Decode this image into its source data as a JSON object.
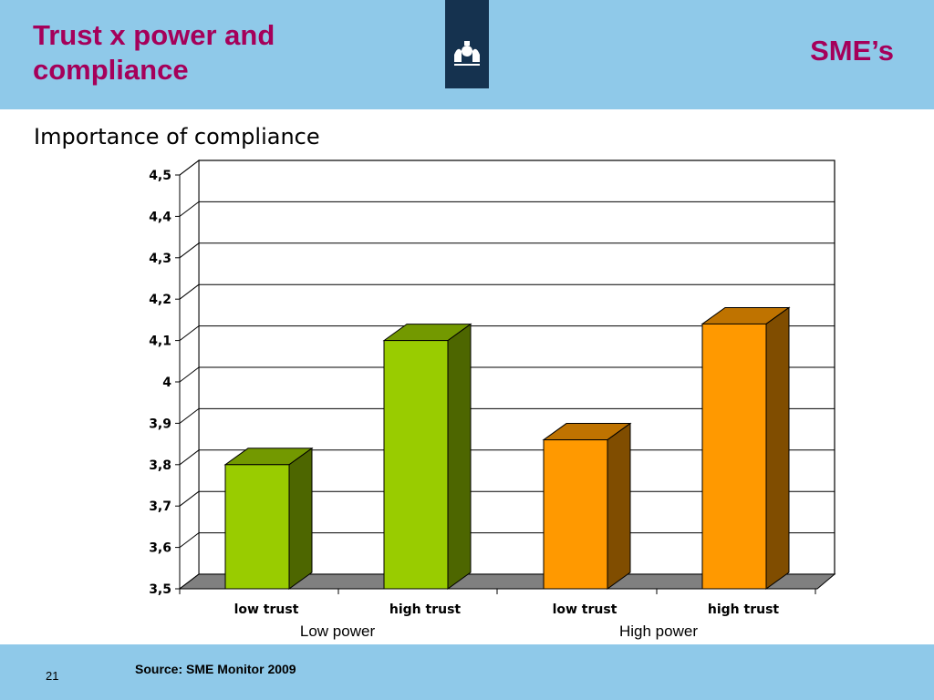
{
  "header": {
    "title": "Trust x power and compliance",
    "segment": "SME’s"
  },
  "footer": {
    "source": "Source: SME Monitor 2009",
    "page_number": "21"
  },
  "chart_data": {
    "type": "bar",
    "title": "Importance of compliance",
    "categories": [
      "low trust",
      "high trust",
      "low trust",
      "high trust"
    ],
    "groups": [
      "Low power",
      "High power"
    ],
    "values": [
      3.8,
      4.1,
      3.86,
      4.14
    ],
    "colors": [
      "#99cc00",
      "#99cc00",
      "#ff9900",
      "#ff9900"
    ],
    "ylim": [
      3.5,
      4.5
    ],
    "yticks": [
      "3,5",
      "3,6",
      "3,7",
      "3,8",
      "3,9",
      "4",
      "4,1",
      "4,2",
      "4,3",
      "4,4",
      "4,5"
    ],
    "grid": true,
    "xlabel": "",
    "ylabel": ""
  }
}
